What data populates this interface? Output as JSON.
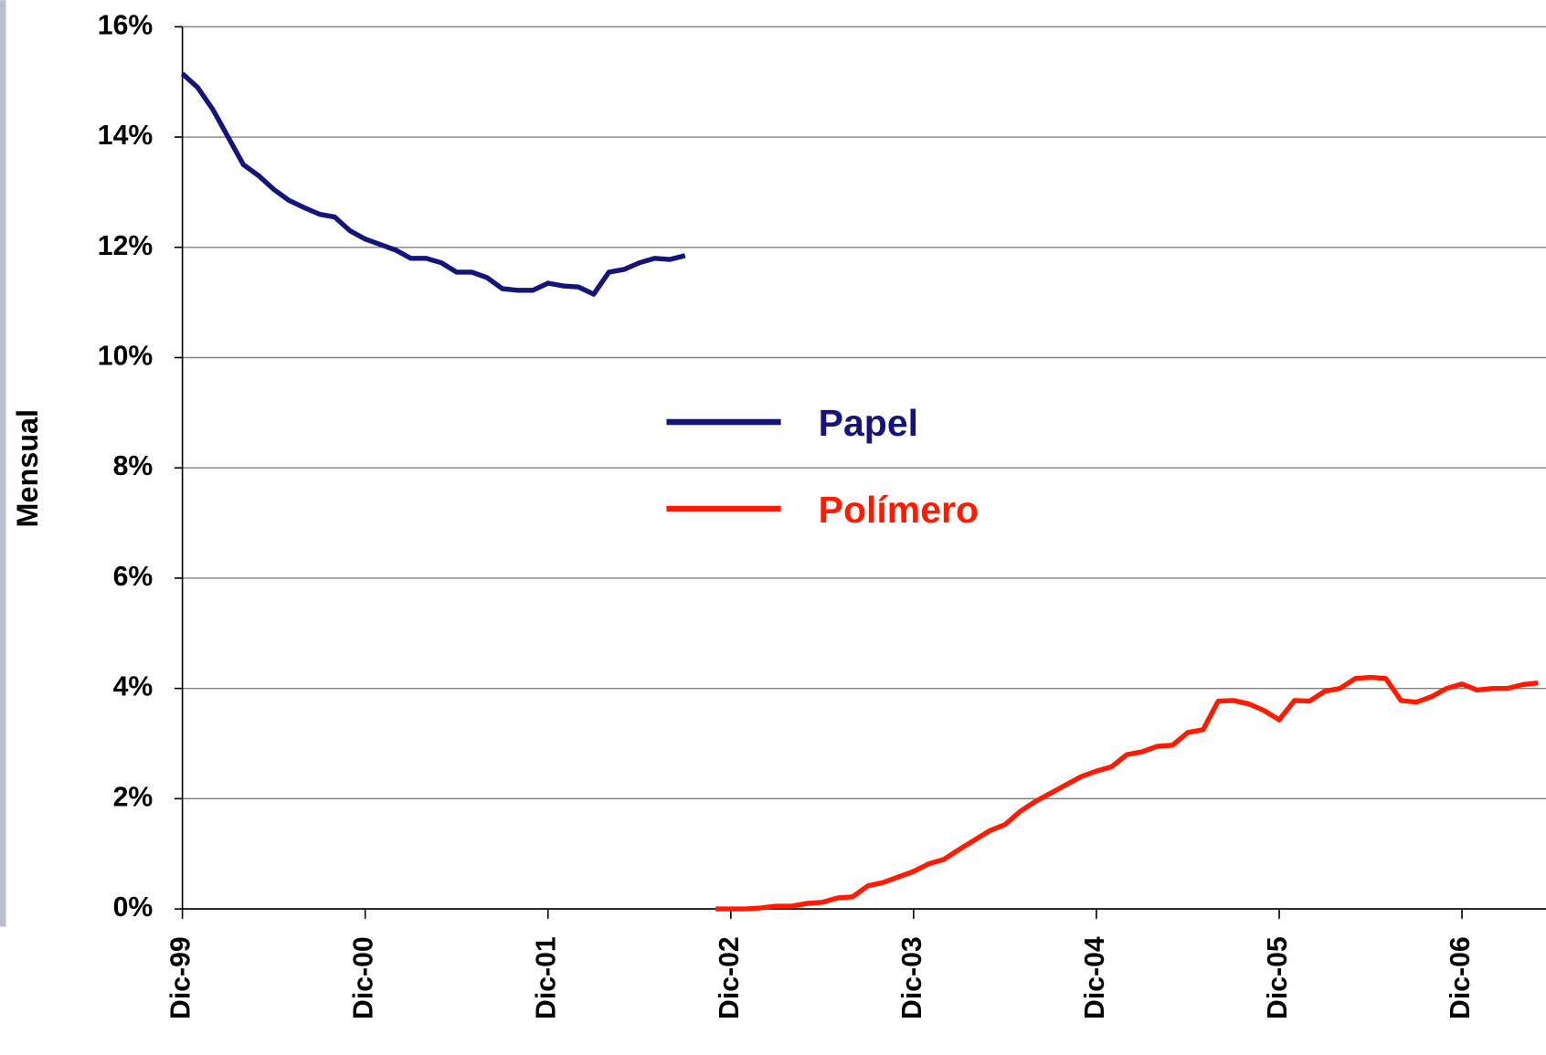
{
  "chart_data": {
    "type": "line",
    "ylabel": "Mensual",
    "categories": [
      "Dic-99",
      null,
      null,
      null,
      null,
      null,
      null,
      null,
      null,
      null,
      null,
      null,
      "Dic-00",
      null,
      null,
      null,
      null,
      null,
      null,
      null,
      null,
      null,
      null,
      null,
      "Dic-01",
      null,
      null,
      null,
      null,
      null,
      null,
      null,
      null,
      null,
      null,
      null,
      "Dic-02",
      null,
      null,
      null,
      null,
      null,
      null,
      null,
      null,
      null,
      null,
      null,
      "Dic-03",
      null,
      null,
      null,
      null,
      null,
      null,
      null,
      null,
      null,
      null,
      null,
      "Dic-04",
      null,
      null,
      null,
      null,
      null,
      null,
      null,
      null,
      null,
      null,
      null,
      "Dic-05",
      null,
      null,
      null,
      null,
      null,
      null,
      null,
      null,
      null,
      null,
      null,
      "Dic-06",
      null,
      null,
      null,
      null,
      null
    ],
    "series": [
      {
        "name": "Papel",
        "color": "#14147a",
        "values": [
          15.15,
          14.9,
          14.5,
          14.0,
          13.5,
          13.3,
          13.05,
          12.85,
          12.72,
          12.6,
          12.55,
          12.3,
          12.15,
          12.05,
          11.95,
          11.8,
          11.8,
          11.72,
          11.55,
          11.55,
          11.45,
          11.25,
          11.22,
          11.22,
          11.35,
          11.3,
          11.28,
          11.15,
          11.55,
          11.6,
          11.72,
          11.8,
          11.78,
          11.85,
          null,
          null,
          null,
          null,
          null,
          null,
          null,
          null,
          null,
          null,
          null,
          null,
          null,
          null,
          null,
          null,
          null,
          null,
          null,
          null,
          null,
          null,
          null,
          null,
          null,
          null,
          null,
          null,
          null,
          null,
          null,
          null,
          null,
          null,
          null,
          null,
          null,
          null,
          null,
          null,
          null,
          null,
          null,
          null,
          null,
          null,
          null,
          null,
          null,
          null,
          null,
          null,
          null,
          null,
          null,
          null
        ]
      },
      {
        "name": "Polímero",
        "color": "#ff1a00",
        "values": [
          null,
          null,
          null,
          null,
          null,
          null,
          null,
          null,
          null,
          null,
          null,
          null,
          null,
          null,
          null,
          null,
          null,
          null,
          null,
          null,
          null,
          null,
          null,
          null,
          null,
          null,
          null,
          null,
          null,
          null,
          null,
          null,
          null,
          null,
          null,
          0,
          0,
          0,
          0.02,
          0.05,
          0.05,
          0.1,
          0.12,
          0.2,
          0.22,
          0.42,
          0.48,
          0.58,
          0.68,
          0.82,
          0.9,
          1.08,
          1.25,
          1.42,
          1.53,
          1.77,
          1.95,
          2.1,
          2.25,
          2.4,
          2.5,
          2.58,
          2.8,
          2.85,
          2.95,
          2.97,
          3.2,
          3.25,
          3.77,
          3.78,
          3.72,
          3.6,
          3.43,
          3.78,
          3.77,
          3.95,
          4.0,
          4.18,
          4.2,
          4.18,
          3.78,
          3.75,
          3.85,
          4.0,
          4.08,
          3.97,
          4.0,
          4.0,
          4.07,
          4.1
        ]
      }
    ],
    "ylim": [
      0,
      16
    ],
    "yticks": [
      {
        "value": 0,
        "label": "0%"
      },
      {
        "value": 2,
        "label": "2%"
      },
      {
        "value": 4,
        "label": "4%"
      },
      {
        "value": 6,
        "label": "6%"
      },
      {
        "value": 8,
        "label": "8%"
      },
      {
        "value": 10,
        "label": "10%"
      },
      {
        "value": 12,
        "label": "12%"
      },
      {
        "value": 14,
        "label": "14%"
      },
      {
        "value": 16,
        "label": "16%"
      }
    ],
    "grid": true
  }
}
